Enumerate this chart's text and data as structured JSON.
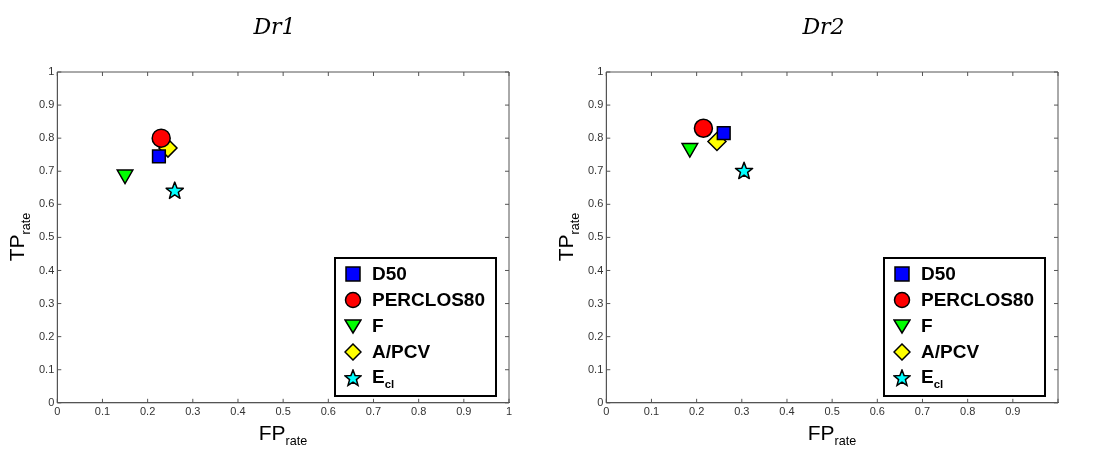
{
  "chart_data": [
    {
      "type": "scatter",
      "title": "Dr1",
      "xlabel": "FP$_{rate}$",
      "ylabel": "TP$_{rate}$",
      "xlim": [
        0,
        1
      ],
      "ylim": [
        0,
        1
      ],
      "xticks": [
        0,
        0.1,
        0.2,
        0.3,
        0.4,
        0.5,
        0.6,
        0.7,
        0.8,
        0.9,
        1
      ],
      "yticks": [
        0,
        0.1,
        0.2,
        0.3,
        0.4,
        0.5,
        0.6,
        0.7,
        0.8,
        0.9,
        1
      ],
      "grid": false,
      "legend": "bottom right",
      "series": [
        {
          "name": "D50",
          "color": "#0000ff",
          "marker": "square",
          "x": [
            0.225
          ],
          "values": [
            0.745
          ]
        },
        {
          "name": "PERCLOS80",
          "color": "#ff0000",
          "marker": "circle",
          "x": [
            0.23
          ],
          "values": [
            0.8
          ]
        },
        {
          "name": "F",
          "color": "#00ff00",
          "marker": "triangle",
          "x": [
            0.15
          ],
          "values": [
            0.69
          ]
        },
        {
          "name": "A/PCV",
          "color": "#ffff00",
          "marker": "diamond",
          "x": [
            0.245
          ],
          "values": [
            0.77
          ]
        },
        {
          "name": "E$_{cl}$",
          "color": "#00ffff",
          "marker": "star",
          "x": [
            0.26
          ],
          "values": [
            0.64
          ]
        }
      ]
    },
    {
      "type": "scatter",
      "title": "Dr2",
      "xlabel": "FP$_{rate}$",
      "ylabel": "TP$_{rate}$",
      "xlim": [
        0,
        1
      ],
      "ylim": [
        0,
        1
      ],
      "xticks": [
        0,
        0.1,
        0.2,
        0.3,
        0.4,
        0.5,
        0.6,
        0.7,
        0.8,
        0.9,
        {
          "value": 1,
          "label": null
        }
      ],
      "yticks": [
        0,
        0.1,
        0.2,
        0.3,
        0.4,
        0.5,
        0.6,
        0.7,
        0.8,
        0.9,
        1
      ],
      "grid": false,
      "legend": "bottom right",
      "series": [
        {
          "name": "D50",
          "color": "#0000ff",
          "marker": "square",
          "x": [
            0.26
          ],
          "values": [
            0.815
          ]
        },
        {
          "name": "PERCLOS80",
          "color": "#ff0000",
          "marker": "circle",
          "x": [
            0.215
          ],
          "values": [
            0.83
          ]
        },
        {
          "name": "F",
          "color": "#00ff00",
          "marker": "triangle",
          "x": [
            0.185
          ],
          "values": [
            0.77
          ]
        },
        {
          "name": "A/PCV",
          "color": "#ffff00",
          "marker": "diamond",
          "x": [
            0.245
          ],
          "values": [
            0.79
          ]
        },
        {
          "name": "E$_{cl}$",
          "color": "#00ffff",
          "marker": "star",
          "x": [
            0.305
          ],
          "values": [
            0.7
          ]
        }
      ]
    }
  ]
}
